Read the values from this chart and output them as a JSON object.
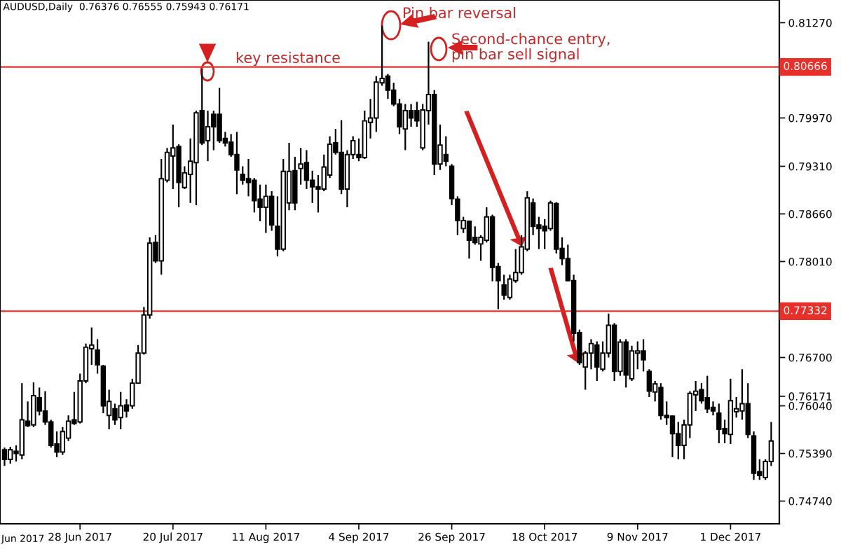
{
  "chart_data": {
    "type": "candlestick",
    "title": "AUDUSD,Daily  0.76376 0.76555 0.75943 0.76171",
    "categories": [
      null,
      null,
      null,
      null,
      null,
      null,
      null,
      null,
      null,
      null,
      null,
      null,
      null,
      "28 Jun 2017",
      null,
      null,
      null,
      null,
      null,
      null,
      null,
      null,
      null,
      null,
      null,
      null,
      null,
      null,
      null,
      "20 Jul 2017",
      null,
      null,
      null,
      null,
      null,
      null,
      null,
      null,
      null,
      null,
      null,
      null,
      null,
      null,
      null,
      "11 Aug 2017",
      null,
      null,
      null,
      null,
      null,
      null,
      null,
      null,
      null,
      null,
      null,
      null,
      null,
      null,
      null,
      "4 Sep 2017",
      null,
      null,
      null,
      null,
      null,
      null,
      null,
      null,
      null,
      null,
      null,
      null,
      null,
      null,
      null,
      "26 Sep 2017",
      null,
      null,
      null,
      null,
      null,
      null,
      null,
      null,
      null,
      null,
      null,
      null,
      null,
      null,
      null,
      "18 Oct 2017",
      null,
      null,
      null,
      null,
      null,
      null,
      null,
      null,
      null,
      null,
      null,
      null,
      null,
      null,
      null,
      "9 Nov 2017",
      null,
      null,
      null,
      null,
      null,
      null,
      null,
      null,
      null,
      null,
      null,
      null,
      null,
      null,
      null,
      "1 Dec 2017",
      null,
      null,
      null,
      null,
      null,
      null,
      null
    ],
    "ohlc": [
      [
        0.7544,
        0.7547,
        0.7522,
        0.7531
      ],
      [
        0.7531,
        0.7548,
        0.7525,
        0.7544
      ],
      [
        0.7542,
        0.755,
        0.7528,
        0.7539
      ],
      [
        0.7537,
        0.7635,
        0.7531,
        0.7585
      ],
      [
        0.7583,
        0.761,
        0.7575,
        0.7577
      ],
      [
        0.7578,
        0.7636,
        0.7575,
        0.7618
      ],
      [
        0.7615,
        0.7629,
        0.7591,
        0.7597
      ],
      [
        0.7597,
        0.7624,
        0.7578,
        0.7582
      ],
      [
        0.7582,
        0.7585,
        0.7547,
        0.755
      ],
      [
        0.7552,
        0.7569,
        0.7534,
        0.7541
      ],
      [
        0.7541,
        0.7575,
        0.7537,
        0.7569
      ],
      [
        0.756,
        0.7591,
        0.7556,
        0.7583
      ],
      [
        0.7585,
        0.7623,
        0.7578,
        0.758
      ],
      [
        0.7582,
        0.7648,
        0.758,
        0.7638
      ],
      [
        0.7638,
        0.7689,
        0.7635,
        0.7684
      ],
      [
        0.7682,
        0.7711,
        0.766,
        0.7687
      ],
      [
        0.768,
        0.7695,
        0.7648,
        0.766
      ],
      [
        0.7658,
        0.766,
        0.7594,
        0.7604
      ],
      [
        0.7591,
        0.7626,
        0.7572,
        0.761
      ],
      [
        0.76,
        0.7607,
        0.7578,
        0.7585
      ],
      [
        0.7588,
        0.7623,
        0.7572,
        0.7604
      ],
      [
        0.7605,
        0.7613,
        0.7588,
        0.7597
      ],
      [
        0.7604,
        0.7641,
        0.76,
        0.7635
      ],
      [
        0.7635,
        0.7687,
        0.7634,
        0.7676
      ],
      [
        0.7676,
        0.7739,
        0.7674,
        0.7728
      ],
      [
        0.7728,
        0.7834,
        0.7723,
        0.7826
      ],
      [
        0.7827,
        0.7837,
        0.7799,
        0.7802
      ],
      [
        0.7802,
        0.7941,
        0.7783,
        0.7914
      ],
      [
        0.7912,
        0.7956,
        0.7909,
        0.795
      ],
      [
        0.7945,
        0.7988,
        0.79,
        0.7956
      ],
      [
        0.7958,
        0.7961,
        0.7875,
        0.7909
      ],
      [
        0.7902,
        0.7931,
        0.79,
        0.7922
      ],
      [
        0.792,
        0.7969,
        0.7881,
        0.7938
      ],
      [
        0.7936,
        0.8007,
        0.7878,
        0.8004
      ],
      [
        0.8007,
        0.8064,
        0.796,
        0.7963
      ],
      [
        0.7966,
        0.8007,
        0.7938,
        0.7985
      ],
      [
        0.8002,
        0.8007,
        0.7953,
        0.7985
      ],
      [
        0.8002,
        0.8038,
        0.7963,
        0.7966
      ],
      [
        0.7969,
        0.7978,
        0.7958,
        0.7963
      ],
      [
        0.7964,
        0.7975,
        0.7944,
        0.7947
      ],
      [
        0.7947,
        0.7978,
        0.7893,
        0.7926
      ],
      [
        0.792,
        0.7931,
        0.7906,
        0.7912
      ],
      [
        0.7914,
        0.7941,
        0.789,
        0.7909
      ],
      [
        0.7912,
        0.7915,
        0.7868,
        0.7884
      ],
      [
        0.7886,
        0.7906,
        0.7856,
        0.7875
      ],
      [
        0.7875,
        0.7906,
        0.784,
        0.789
      ],
      [
        0.789,
        0.7897,
        0.7843,
        0.7851
      ],
      [
        0.7849,
        0.789,
        0.7808,
        0.7818
      ],
      [
        0.7818,
        0.7941,
        0.7815,
        0.7924
      ],
      [
        0.7881,
        0.7963,
        0.7871,
        0.7924
      ],
      [
        0.7925,
        0.7944,
        0.7871,
        0.7881
      ],
      [
        0.7928,
        0.7956,
        0.7906,
        0.7934
      ],
      [
        0.7936,
        0.7953,
        0.79,
        0.7912
      ],
      [
        0.7912,
        0.7925,
        0.7881,
        0.7903
      ],
      [
        0.7903,
        0.7919,
        0.7868,
        0.79
      ],
      [
        0.79,
        0.7947,
        0.7897,
        0.793
      ],
      [
        0.7919,
        0.7972,
        0.7915,
        0.7961
      ],
      [
        0.7963,
        0.7982,
        0.7947,
        0.795
      ],
      [
        0.795,
        0.7994,
        0.7893,
        0.79
      ],
      [
        0.79,
        0.7953,
        0.7875,
        0.7947
      ],
      [
        0.7947,
        0.7972,
        0.7941,
        0.7966
      ],
      [
        0.7947,
        0.7969,
        0.7938,
        0.7943
      ],
      [
        0.7943,
        0.8007,
        0.7941,
        0.7993
      ],
      [
        0.7991,
        0.8023,
        0.7969,
        0.7997
      ],
      [
        0.7997,
        0.8054,
        0.7978,
        0.8046
      ],
      [
        0.8045,
        0.8123,
        0.8041,
        0.8051
      ],
      [
        0.8054,
        0.8057,
        0.8023,
        0.8035
      ],
      [
        0.8035,
        0.8045,
        0.8013,
        0.8016
      ],
      [
        0.8016,
        0.8023,
        0.7975,
        0.7985
      ],
      [
        0.7982,
        0.8016,
        0.7953,
        0.8007
      ],
      [
        0.8007,
        0.8016,
        0.7985,
        0.7997
      ],
      [
        0.8007,
        0.8019,
        0.7985,
        0.7993
      ],
      [
        0.7956,
        0.8016,
        0.7953,
        0.8008
      ],
      [
        0.8007,
        0.8101,
        0.7988,
        0.8029
      ],
      [
        0.8029,
        0.8035,
        0.7919,
        0.7934
      ],
      [
        0.7934,
        0.7988,
        0.7926,
        0.796
      ],
      [
        0.7947,
        0.7972,
        0.7931,
        0.7938
      ],
      [
        0.7931,
        0.7934,
        0.7878,
        0.7887
      ],
      [
        0.7886,
        0.789,
        0.7837,
        0.7857
      ],
      [
        0.7846,
        0.7862,
        0.784,
        0.7857
      ],
      [
        0.7856,
        0.7857,
        0.7805,
        0.783
      ],
      [
        0.7834,
        0.7849,
        0.7824,
        0.7827
      ],
      [
        0.7825,
        0.7837,
        0.7802,
        0.7834
      ],
      [
        0.783,
        0.7875,
        0.7827,
        0.7862
      ],
      [
        0.7862,
        0.7865,
        0.7774,
        0.7793
      ],
      [
        0.7794,
        0.7799,
        0.7736,
        0.7775
      ],
      [
        0.7769,
        0.7783,
        0.7749,
        0.7755
      ],
      [
        0.7752,
        0.7783,
        0.7749,
        0.7777
      ],
      [
        0.7775,
        0.7818,
        0.7772,
        0.7786
      ],
      [
        0.7786,
        0.7837,
        0.7783,
        0.7821
      ],
      [
        0.7818,
        0.7897,
        0.7815,
        0.7888
      ],
      [
        0.7881,
        0.7887,
        0.7837,
        0.7849
      ],
      [
        0.7851,
        0.7862,
        0.7818,
        0.7846
      ],
      [
        0.7849,
        0.7859,
        0.7818,
        0.7843
      ],
      [
        0.7846,
        0.7884,
        0.7843,
        0.7881
      ],
      [
        0.788,
        0.7882,
        0.7812,
        0.7818
      ],
      [
        0.7819,
        0.7834,
        0.7796,
        0.7805
      ],
      [
        0.7805,
        0.7824,
        0.7774,
        0.7775
      ],
      [
        0.7775,
        0.7783,
        0.7692,
        0.7703
      ],
      [
        0.7704,
        0.7708,
        0.766,
        0.7663
      ],
      [
        0.7657,
        0.7679,
        0.7626,
        0.7676
      ],
      [
        0.7676,
        0.7695,
        0.7654,
        0.7689
      ],
      [
        0.7687,
        0.7692,
        0.7638,
        0.7657
      ],
      [
        0.7654,
        0.7692,
        0.7651,
        0.7676
      ],
      [
        0.7676,
        0.773,
        0.767,
        0.7714
      ],
      [
        0.7714,
        0.7717,
        0.7638,
        0.7651
      ],
      [
        0.7651,
        0.7695,
        0.7645,
        0.7691
      ],
      [
        0.7691,
        0.7695,
        0.7629,
        0.7646
      ],
      [
        0.7641,
        0.7686,
        0.7638,
        0.7679
      ],
      [
        0.7676,
        0.7692,
        0.7654,
        0.7679
      ],
      [
        0.7679,
        0.7695,
        0.7651,
        0.7667
      ],
      [
        0.7651,
        0.7654,
        0.7616,
        0.7624
      ],
      [
        0.7623,
        0.7638,
        0.761,
        0.7634
      ],
      [
        0.7629,
        0.7635,
        0.7585,
        0.7591
      ],
      [
        0.7591,
        0.761,
        0.7578,
        0.7588
      ],
      [
        0.759,
        0.7591,
        0.7534,
        0.7566
      ],
      [
        0.7566,
        0.7582,
        0.7531,
        0.755
      ],
      [
        0.755,
        0.7585,
        0.7531,
        0.7578
      ],
      [
        0.7578,
        0.7624,
        0.756,
        0.7621
      ],
      [
        0.7619,
        0.7638,
        0.7597,
        0.7624
      ],
      [
        0.7626,
        0.7635,
        0.7607,
        0.7611
      ],
      [
        0.7615,
        0.7645,
        0.7594,
        0.76
      ],
      [
        0.7602,
        0.761,
        0.7591,
        0.7597
      ],
      [
        0.7594,
        0.7607,
        0.7553,
        0.7572
      ],
      [
        0.7573,
        0.7585,
        0.7553,
        0.7566
      ],
      [
        0.7565,
        0.7641,
        0.7552,
        0.7611
      ],
      [
        0.7596,
        0.7616,
        0.7588,
        0.76
      ],
      [
        0.7597,
        0.7654,
        0.7585,
        0.7607
      ],
      [
        0.7607,
        0.7635,
        0.756,
        0.7565
      ],
      [
        0.7563,
        0.7569,
        0.7503,
        0.7512
      ],
      [
        0.7514,
        0.7531,
        0.7503,
        0.7509
      ],
      [
        0.7506,
        0.7531,
        0.7503,
        0.7528
      ],
      [
        0.7528,
        0.7582,
        0.7522,
        0.7556
      ]
    ],
    "ylim": [
      0.7443,
      0.8158
    ],
    "yticks": [
      {
        "value": 0.8127,
        "label": "0.81270"
      },
      {
        "value": 0.7997,
        "label": "0.79970"
      },
      {
        "value": 0.7931,
        "label": "0.79310"
      },
      {
        "value": 0.7866,
        "label": "0.78660"
      },
      {
        "value": 0.7801,
        "label": "0.78010"
      },
      {
        "value": 0.767,
        "label": "0.76700"
      },
      {
        "value": 0.76171,
        "label": "0.76171"
      },
      {
        "value": 0.7604,
        "label": "0.76040"
      },
      {
        "value": 0.7539,
        "label": "0.75390"
      },
      {
        "value": 0.7474,
        "label": "0.74740"
      }
    ],
    "ref_lines": [
      {
        "axis": "y",
        "value": 0.80666,
        "label": "0.80666",
        "color": "#e8302a"
      },
      {
        "axis": "y",
        "value": 0.77332,
        "label": "0.77332",
        "color": "#e8302a"
      }
    ],
    "annotations": [
      "key resistance",
      "Pin bar reversal",
      "Second-chance entry,\npin bar sell signal",
      "Jun 2017"
    ],
    "grid": false,
    "legend": false
  }
}
